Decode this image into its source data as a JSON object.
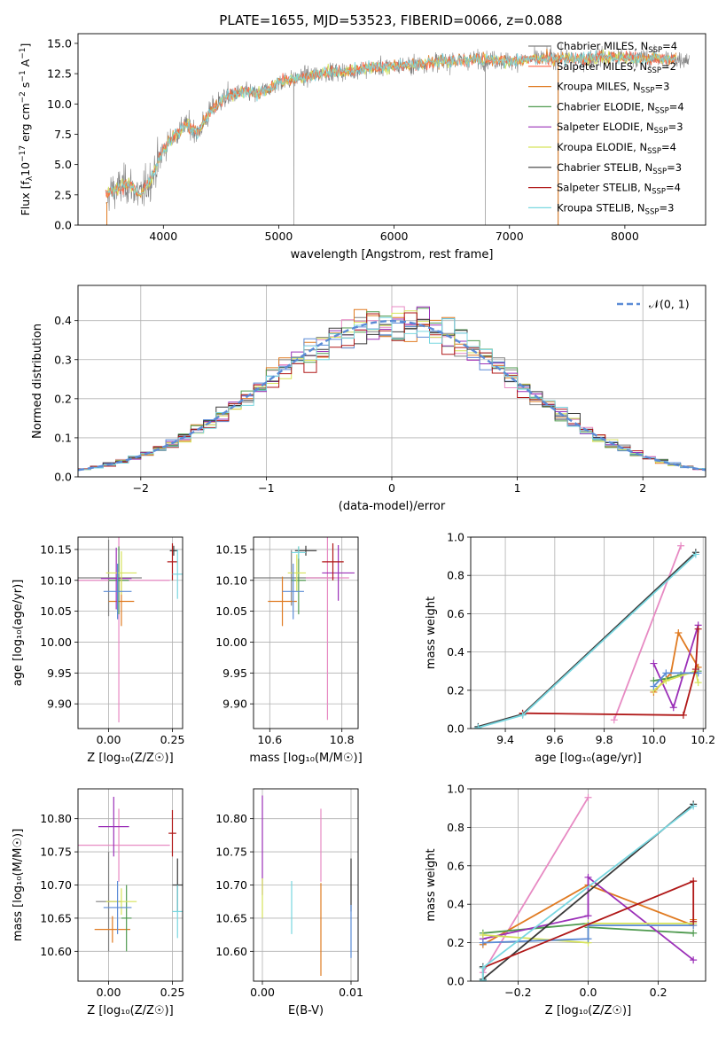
{
  "figure": {
    "title": "PLATE=1655, MJD=53523, FIBERID=0066, z=0.088"
  },
  "models": [
    {
      "label": "Chabrier MILES, N",
      "sub": "SSP",
      "suffix": "=4",
      "color": "#808080"
    },
    {
      "label": "Salpeter MILES, N",
      "sub": "SSP",
      "suffix": "=2",
      "color": "#ff6347"
    },
    {
      "label": "Kroupa MILES, N",
      "sub": "SSP",
      "suffix": "=3",
      "color": "#e07b22"
    },
    {
      "label": "Chabrier ELODIE, N",
      "sub": "SSP",
      "suffix": "=4",
      "color": "#4f9a4f"
    },
    {
      "label": "Salpeter ELODIE, N",
      "sub": "SSP",
      "suffix": "=3",
      "color": "#9b30b8"
    },
    {
      "label": "Kroupa ELODIE, N",
      "sub": "SSP",
      "suffix": "=4",
      "color": "#d6e35a"
    },
    {
      "label": "Chabrier STELIB, N",
      "sub": "SSP",
      "suffix": "=3",
      "color": "#3a3a3a"
    },
    {
      "label": "Salpeter STELIB, N",
      "sub": "SSP",
      "suffix": "=4",
      "color": "#b01818"
    },
    {
      "label": "Kroupa STELIB, N",
      "sub": "SSP",
      "suffix": "=3",
      "color": "#79d7e0"
    }
  ],
  "chart_data": [
    {
      "type": "line",
      "name": "spectrum",
      "xlabel": "wavelength [Angstrom, rest frame]",
      "ylabel_parts": [
        "Flux [f",
        "λ",
        "10",
        "−17",
        " erg cm",
        "−2",
        " s",
        "−1",
        " A",
        "−1",
        "]"
      ],
      "xlim": [
        3260,
        8700
      ],
      "ylim": [
        0,
        15.8
      ],
      "xticks": [
        4000,
        5000,
        6000,
        7000,
        8000
      ],
      "yticks": [
        0.0,
        2.5,
        5.0,
        7.5,
        10.0,
        12.5,
        15.0
      ],
      "data_color": "#808080",
      "continuum": {
        "x": [
          3500,
          3600,
          3700,
          3800,
          3900,
          4000,
          4100,
          4200,
          4300,
          4400,
          4500,
          4600,
          4700,
          4800,
          4900,
          5000,
          5200,
          5400,
          5600,
          5800,
          6000,
          6200,
          6400,
          6600,
          6800,
          7000,
          7200,
          7400,
          7600,
          7800,
          8000,
          8200,
          8400
        ],
        "y": [
          2.6,
          3.0,
          3.4,
          2.4,
          4.0,
          6.2,
          7.5,
          8.3,
          7.6,
          9.3,
          10.3,
          10.8,
          11.0,
          10.8,
          11.2,
          11.8,
          12.2,
          12.6,
          12.7,
          13.0,
          13.1,
          13.3,
          13.5,
          13.6,
          13.7,
          13.5,
          13.7,
          13.8,
          13.7,
          13.9,
          13.8,
          13.8,
          13.7
        ]
      },
      "dropouts": [
        5130,
        6790,
        7420
      ]
    },
    {
      "type": "line",
      "name": "residual histogram",
      "xlabel": "(data-model)/error",
      "ylabel": "Normed distribution",
      "xlim": [
        -2.5,
        2.5
      ],
      "ylim": [
        0,
        0.49
      ],
      "xticks": [
        -2,
        -1,
        0,
        1,
        2
      ],
      "yticks": [
        0.0,
        0.1,
        0.2,
        0.3,
        0.4
      ],
      "legend": "𝒩(0, 1)",
      "gaussian_color": "#5b8bd6"
    },
    {
      "type": "scatter",
      "name": "age vs Z",
      "xlabel": "Z [log₁₀(Z/Z☉)]",
      "ylabel": "age  [log₁₀(age/yr)]",
      "xlim": [
        -0.12,
        0.29
      ],
      "ylim": [
        9.86,
        10.17
      ],
      "xticks": [
        0.0,
        0.25
      ],
      "yticks": [
        9.9,
        9.95,
        10.0,
        10.05,
        10.1,
        10.15
      ],
      "points": [
        {
          "x": 0.0,
          "y": 10.104,
          "xerr": 0.13,
          "yerr": 0.062,
          "color": "#808080"
        },
        {
          "x": 0.04,
          "y": 10.1,
          "xerr": 0.2,
          "yerr": 0.23,
          "color": "#e78ac3"
        },
        {
          "x": 0.05,
          "y": 10.066,
          "xerr": 0.05,
          "yerr": 0.04,
          "color": "#e07b22"
        },
        {
          "x": 0.04,
          "y": 10.1,
          "xerr": 0.04,
          "yerr": 0.055,
          "color": "#4f9a4f"
        },
        {
          "x": 0.03,
          "y": 10.103,
          "xerr": 0.06,
          "yerr": 0.05,
          "color": "#9b30b8"
        },
        {
          "x": 0.05,
          "y": 10.112,
          "xerr": 0.06,
          "yerr": 0.035,
          "color": "#d6e35a"
        },
        {
          "x": 0.035,
          "y": 10.082,
          "xerr": 0.055,
          "yerr": 0.045,
          "color": "#5b8bd6"
        },
        {
          "x": 0.255,
          "y": 10.148,
          "xerr": 0.015,
          "yerr": 0.008,
          "color": "#3a3a3a"
        },
        {
          "x": 0.25,
          "y": 10.13,
          "xerr": 0.02,
          "yerr": 0.03,
          "color": "#b01818"
        },
        {
          "x": 0.27,
          "y": 10.11,
          "xerr": 0.02,
          "yerr": 0.04,
          "color": "#79d7e0"
        }
      ]
    },
    {
      "type": "scatter",
      "name": "age vs mass",
      "xlabel": "mass [log₁₀(M/M☉)]",
      "ylabel": "",
      "xlim": [
        10.555,
        10.845
      ],
      "ylim": [
        9.86,
        10.17
      ],
      "xticks": [
        10.6,
        10.8
      ],
      "yticks": [
        9.9,
        9.95,
        10.0,
        10.05,
        10.1,
        10.15
      ],
      "points": [
        {
          "x": 10.66,
          "y": 10.104,
          "xerr": 0.12,
          "yerr": 0.045,
          "color": "#808080"
        },
        {
          "x": 10.76,
          "y": 10.104,
          "xerr": 0.06,
          "yerr": 0.23,
          "color": "#e78ac3"
        },
        {
          "x": 10.635,
          "y": 10.066,
          "xerr": 0.04,
          "yerr": 0.04,
          "color": "#e07b22"
        },
        {
          "x": 10.68,
          "y": 10.1,
          "xerr": 0.02,
          "yerr": 0.055,
          "color": "#4f9a4f"
        },
        {
          "x": 10.79,
          "y": 10.112,
          "xerr": 0.045,
          "yerr": 0.045,
          "color": "#9b30b8"
        },
        {
          "x": 10.675,
          "y": 10.112,
          "xerr": 0.025,
          "yerr": 0.03,
          "color": "#d6e35a"
        },
        {
          "x": 10.665,
          "y": 10.082,
          "xerr": 0.03,
          "yerr": 0.045,
          "color": "#5b8bd6"
        },
        {
          "x": 10.7,
          "y": 10.148,
          "xerr": 0.03,
          "yerr": 0.008,
          "color": "#3a3a3a"
        },
        {
          "x": 10.775,
          "y": 10.13,
          "xerr": 0.03,
          "yerr": 0.03,
          "color": "#b01818"
        },
        {
          "x": 10.68,
          "y": 10.145,
          "xerr": 0.02,
          "yerr": 0.01,
          "color": "#79d7e0"
        }
      ]
    },
    {
      "type": "line",
      "name": "mass weight vs age",
      "xlabel": "age  [log₁₀(age/yr)]",
      "ylabel": "mass weight",
      "xlim": [
        9.26,
        10.21
      ],
      "ylim": [
        0,
        1.0
      ],
      "xticks": [
        9.4,
        9.6,
        9.8,
        10.0,
        10.2
      ],
      "yticks": [
        0.0,
        0.2,
        0.4,
        0.6,
        0.8,
        1.0
      ],
      "series": [
        {
          "color": "#e78ac3",
          "x": [
            9.84,
            10.11
          ],
          "y": [
            0.045,
            0.955
          ]
        },
        {
          "color": "#e07b22",
          "x": [
            10.0,
            10.07,
            10.1,
            10.18
          ],
          "y": [
            0.19,
            0.29,
            0.5,
            0.32
          ]
        },
        {
          "color": "#4f9a4f",
          "x": [
            10.0,
            10.05,
            10.11,
            10.18
          ],
          "y": [
            0.25,
            0.26,
            0.28,
            0.3
          ]
        },
        {
          "color": "#9b30b8",
          "x": [
            10.0,
            10.08,
            10.18
          ],
          "y": [
            0.34,
            0.11,
            0.54
          ]
        },
        {
          "color": "#d6e35a",
          "x": [
            10.0,
            10.05,
            10.17,
            10.18
          ],
          "y": [
            0.2,
            0.25,
            0.3,
            0.24
          ]
        },
        {
          "color": "#5b8bd6",
          "x": [
            10.0,
            10.05,
            10.18
          ],
          "y": [
            0.22,
            0.29,
            0.29
          ]
        },
        {
          "color": "#3a3a3a",
          "x": [
            9.29,
            9.47,
            10.17
          ],
          "y": [
            0.01,
            0.075,
            0.92
          ]
        },
        {
          "color": "#b01818",
          "x": [
            9.47,
            10.12,
            10.17,
            10.18
          ],
          "y": [
            0.08,
            0.07,
            0.31,
            0.52
          ]
        },
        {
          "color": "#79d7e0",
          "x": [
            9.29,
            9.47,
            10.17
          ],
          "y": [
            0.005,
            0.07,
            0.91
          ]
        }
      ]
    },
    {
      "type": "scatter",
      "name": "mass vs Z",
      "xlabel": "Z [log₁₀(Z/Z☉)]",
      "ylabel": "mass [log₁₀(M/M☉)]",
      "xlim": [
        -0.12,
        0.29
      ],
      "ylim": [
        10.555,
        10.845
      ],
      "xticks": [
        0.0,
        0.25
      ],
      "yticks": [
        10.6,
        10.65,
        10.7,
        10.75,
        10.8
      ],
      "points": [
        {
          "x": 0.0,
          "y": 10.675,
          "xerr": 0.05,
          "yerr": 0.075,
          "color": "#808080"
        },
        {
          "x": 0.04,
          "y": 10.76,
          "xerr": 0.2,
          "yerr": 0.055,
          "color": "#e78ac3"
        },
        {
          "x": 0.015,
          "y": 10.633,
          "xerr": 0.07,
          "yerr": 0.02,
          "color": "#e07b22"
        },
        {
          "x": 0.07,
          "y": 10.65,
          "xerr": 0.02,
          "yerr": 0.05,
          "color": "#4f9a4f"
        },
        {
          "x": 0.02,
          "y": 10.788,
          "xerr": 0.06,
          "yerr": 0.045,
          "color": "#9b30b8"
        },
        {
          "x": 0.05,
          "y": 10.675,
          "xerr": 0.06,
          "yerr": 0.02,
          "color": "#d6e35a"
        },
        {
          "x": 0.035,
          "y": 10.666,
          "xerr": 0.055,
          "yerr": 0.04,
          "color": "#5b8bd6"
        },
        {
          "x": 0.27,
          "y": 10.7,
          "xerr": 0.02,
          "yerr": 0.04,
          "color": "#3a3a3a"
        },
        {
          "x": 0.25,
          "y": 10.778,
          "xerr": 0.015,
          "yerr": 0.035,
          "color": "#b01818"
        },
        {
          "x": 0.27,
          "y": 10.66,
          "xerr": 0.02,
          "yerr": 0.04,
          "color": "#79d7e0"
        }
      ]
    },
    {
      "type": "scatter",
      "name": "mass vs E(B-V)",
      "xlabel": "E(B-V)",
      "ylabel": "",
      "xlim": [
        -0.001,
        0.0108
      ],
      "ylim": [
        10.555,
        10.845
      ],
      "xticks": [
        0.0,
        0.01
      ],
      "xtick_labels": [
        "0.00",
        "0.01"
      ],
      "yticks": [
        10.6,
        10.65,
        10.7,
        10.75,
        10.8
      ],
      "points": [
        {
          "x": 0.0,
          "y": 10.76,
          "xerr": 0.0,
          "yerr": 0.075,
          "color": "#9b30b8"
        },
        {
          "x": 0.0,
          "y": 10.68,
          "xerr": 0.0,
          "yerr": 0.03,
          "color": "#d6e35a"
        },
        {
          "x": 0.0033,
          "y": 10.666,
          "xerr": 0.0,
          "yerr": 0.04,
          "color": "#79d7e0"
        },
        {
          "x": 0.0066,
          "y": 10.76,
          "xerr": 0.0,
          "yerr": 0.055,
          "color": "#e78ac3"
        },
        {
          "x": 0.0066,
          "y": 10.633,
          "xerr": 0.0,
          "yerr": 0.07,
          "color": "#e07b22"
        },
        {
          "x": 0.01,
          "y": 10.7,
          "xerr": 0.0,
          "yerr": 0.04,
          "color": "#3a3a3a"
        },
        {
          "x": 0.01,
          "y": 10.63,
          "xerr": 0.0,
          "yerr": 0.04,
          "color": "#5b8bd6"
        }
      ]
    },
    {
      "type": "line",
      "name": "mass weight vs Z",
      "xlabel": "Z [log₁₀(Z/Z☉)]",
      "ylabel": "mass weight",
      "xlim": [
        -0.335,
        0.335
      ],
      "ylim": [
        0,
        1.0
      ],
      "xticks": [
        -0.2,
        0.0,
        0.2
      ],
      "xtick_labels": [
        "−0.2",
        "0.0",
        "0.2"
      ],
      "yticks": [
        0.0,
        0.2,
        0.4,
        0.6,
        0.8,
        1.0
      ],
      "series": [
        {
          "color": "#e78ac3",
          "x": [
            -0.3,
            0.0
          ],
          "y": [
            0.045,
            0.955
          ]
        },
        {
          "color": "#e07b22",
          "x": [
            -0.3,
            0.0,
            0.3,
            0.3
          ],
          "y": [
            0.19,
            0.5,
            0.29,
            0.32
          ]
        },
        {
          "color": "#4f9a4f",
          "x": [
            -0.3,
            0.0,
            0.0,
            0.3
          ],
          "y": [
            0.25,
            0.3,
            0.28,
            0.25
          ]
        },
        {
          "color": "#9b30b8",
          "x": [
            -0.3,
            0.0,
            0.0,
            0.3
          ],
          "y": [
            0.22,
            0.34,
            0.54,
            0.11
          ]
        },
        {
          "color": "#d6e35a",
          "x": [
            -0.3,
            0.0,
            0.0,
            0.3
          ],
          "y": [
            0.24,
            0.2,
            0.3,
            0.3
          ]
        },
        {
          "color": "#5b8bd6",
          "x": [
            -0.3,
            0.0,
            0.0,
            0.3
          ],
          "y": [
            0.2,
            0.22,
            0.29,
            0.29
          ]
        },
        {
          "color": "#3a3a3a",
          "x": [
            -0.3,
            -0.3,
            0.3
          ],
          "y": [
            0.075,
            0.01,
            0.92
          ]
        },
        {
          "color": "#b01818",
          "x": [
            -0.3,
            0.3,
            0.3
          ],
          "y": [
            0.07,
            0.52,
            0.31
          ]
        },
        {
          "color": "#79d7e0",
          "x": [
            -0.3,
            -0.3,
            0.3
          ],
          "y": [
            0.005,
            0.07,
            0.91
          ]
        }
      ]
    }
  ]
}
